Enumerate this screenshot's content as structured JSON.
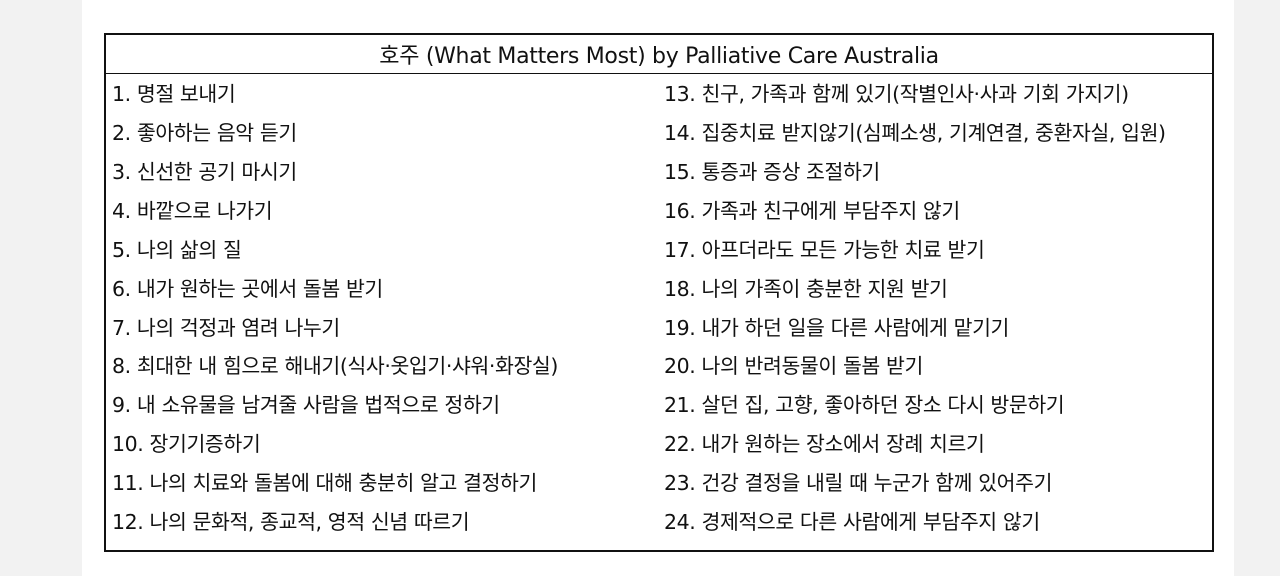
{
  "title": "호주 (What Matters Most) by Palliative Care Australia",
  "left_items": [
    "1. 명절 보내기",
    "2. 좋아하는 음악 듣기",
    "3. 신선한 공기 마시기",
    "4. 바깥으로 나가기",
    "5. 나의 삶의 질",
    "6. 내가 원하는 곳에서 돌봄 받기",
    "7. 나의 걱정과 염려 나누기",
    "8. 최대한 내 힘으로 해내기(식사·옷입기·샤워·화장실)",
    "9. 내 소유물을 남겨줄 사람을 법적으로 정하기",
    "10. 장기기증하기",
    "11. 나의 치료와 돌봄에 대해 충분히 알고 결정하기",
    "12. 나의 문화적, 종교적, 영적 신념 따르기"
  ],
  "right_items": [
    "13. 친구, 가족과 함께 있기(작별인사·사과 기회 가지기)",
    "14. 집중치료 받지않기(심폐소생, 기계연결, 중환자실, 입원)",
    "15. 통증과 증상 조절하기",
    "16. 가족과 친구에게 부담주지 않기",
    "17. 아프더라도 모든 가능한 치료 받기",
    "18. 나의 가족이 충분한 지원 받기",
    "19. 내가 하던 일을 다른 사람에게 맡기기",
    "20. 나의 반려동물이 돌봄 받기",
    "21. 살던 집, 고향, 좋아하던 장소 다시 방문하기",
    "22. 내가 원하는 장소에서 장례 치르기",
    "23. 건강 결정을 내릴 때 누군가 함께 있어주기",
    "24. 경제적으로 다른 사람에게 부담주지 않기"
  ]
}
